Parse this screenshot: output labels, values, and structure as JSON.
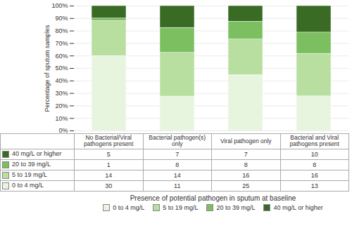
{
  "chart_data": {
    "type": "bar",
    "stacked": true,
    "categories": [
      "No Bacterial/Viral\npathogens present",
      "Bacterial pathogen(s)\nonly",
      "Viral pathogen only",
      "Bacterial and Viral\npathogens present"
    ],
    "series": [
      {
        "name": "0 to 4 mg/L",
        "color": "#e8f5de",
        "values": [
          60,
          27.5,
          44.642857142857146,
          27.659574468085108
        ],
        "counts": [
          30,
          11,
          25,
          13
        ]
      },
      {
        "name": "5 to 19 mg/L",
        "color": "#b8dfa0",
        "values": [
          28,
          35,
          28.571428571428573,
          34.04255319148936
        ],
        "counts": [
          14,
          14,
          16,
          16
        ]
      },
      {
        "name": "20 to 39 mg/L",
        "color": "#7bbf60",
        "values": [
          2,
          20,
          14.285714285714286,
          17.02127659574468
        ],
        "counts": [
          1,
          8,
          8,
          8
        ]
      },
      {
        "name": "40 mg/L or higher",
        "color": "#3a6b25",
        "values": [
          10,
          17.5,
          12.5,
          21.27659574468085
        ],
        "counts": [
          5,
          7,
          7,
          10
        ]
      }
    ],
    "ylabel": "Percentage of sputum samples",
    "xlabel": "Presence of potential pathogen in sputum at baseline",
    "ylim": [
      0,
      100
    ],
    "yticks": [
      {
        "value": 0,
        "label": "0%"
      },
      {
        "value": 10,
        "label": "10%"
      },
      {
        "value": 20,
        "label": "20%"
      },
      {
        "value": 30,
        "label": "30%"
      },
      {
        "value": 40,
        "label": "40%"
      },
      {
        "value": 50,
        "label": "50%"
      },
      {
        "value": 60,
        "label": "60%"
      },
      {
        "value": 70,
        "label": "70%"
      },
      {
        "value": 80,
        "label": "80%"
      },
      {
        "value": 90,
        "label": "90%"
      },
      {
        "value": 100,
        "label": "100%"
      }
    ],
    "grid": true,
    "legend": "bottom",
    "tick_labels": "y"
  }
}
